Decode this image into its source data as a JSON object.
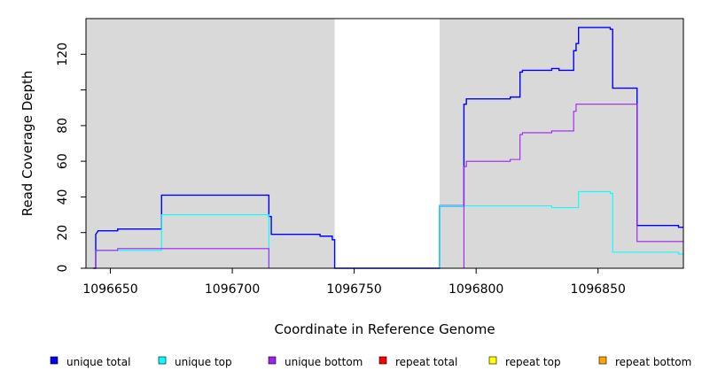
{
  "chart_data": {
    "type": "line",
    "step": true,
    "xlabel": "Coordinate in Reference Genome",
    "ylabel": "Read Coverage Depth",
    "xlim": [
      1096640,
      1096885
    ],
    "ylim": [
      0,
      140
    ],
    "xticks": [
      1096650,
      1096700,
      1096750,
      1096800,
      1096850
    ],
    "xtick_labels": [
      "1096650",
      "1096700",
      "1096750",
      "1096800",
      "1096850"
    ],
    "yticks": [
      0,
      20,
      40,
      60,
      80,
      100,
      120
    ],
    "ytick_labels": [
      "0",
      "20",
      "40",
      "60",
      "80",
      "",
      "120"
    ],
    "background_color": "#d9d9d9",
    "unshaded_region": [
      1096742,
      1096785
    ],
    "legend_position": "bottom",
    "series": [
      {
        "name": "unique total",
        "color": "#0000ff",
        "points": [
          [
            1096643,
            0
          ],
          [
            1096644,
            0
          ],
          [
            1096644,
            19
          ],
          [
            1096645,
            21
          ],
          [
            1096653,
            21
          ],
          [
            1096653,
            22
          ],
          [
            1096671,
            22
          ],
          [
            1096671,
            41
          ],
          [
            1096715,
            41
          ],
          [
            1096715,
            29
          ],
          [
            1096716,
            29
          ],
          [
            1096716,
            19
          ],
          [
            1096736,
            19
          ],
          [
            1096736,
            18
          ],
          [
            1096741,
            18
          ],
          [
            1096741,
            16
          ],
          [
            1096742,
            16
          ],
          [
            1096742,
            0
          ],
          [
            1096785,
            0
          ],
          [
            1096785,
            35
          ],
          [
            1096795,
            35
          ],
          [
            1096795,
            92
          ],
          [
            1096796,
            92
          ],
          [
            1096796,
            95
          ],
          [
            1096814,
            95
          ],
          [
            1096814,
            96
          ],
          [
            1096818,
            96
          ],
          [
            1096818,
            110
          ],
          [
            1096819,
            110
          ],
          [
            1096819,
            111
          ],
          [
            1096831,
            111
          ],
          [
            1096831,
            112
          ],
          [
            1096834,
            112
          ],
          [
            1096834,
            111
          ],
          [
            1096840,
            111
          ],
          [
            1096840,
            122
          ],
          [
            1096841,
            122
          ],
          [
            1096841,
            126
          ],
          [
            1096842,
            126
          ],
          [
            1096842,
            135
          ],
          [
            1096855,
            135
          ],
          [
            1096855,
            134
          ],
          [
            1096856,
            134
          ],
          [
            1096856,
            101
          ],
          [
            1096866,
            101
          ],
          [
            1096866,
            24
          ],
          [
            1096883,
            24
          ],
          [
            1096883,
            23
          ],
          [
            1096885,
            23
          ]
        ]
      },
      {
        "name": "unique top",
        "color": "#00ffff",
        "points": [
          [
            1096643,
            0
          ],
          [
            1096644,
            0
          ],
          [
            1096644,
            9
          ],
          [
            1096645,
            10
          ],
          [
            1096671,
            10
          ],
          [
            1096671,
            30
          ],
          [
            1096715,
            30
          ],
          [
            1096715,
            0
          ],
          [
            1096785,
            0
          ],
          [
            1096785,
            35
          ],
          [
            1096831,
            35
          ],
          [
            1096831,
            34
          ],
          [
            1096842,
            34
          ],
          [
            1096842,
            43
          ],
          [
            1096855,
            43
          ],
          [
            1096855,
            42
          ],
          [
            1096856,
            42
          ],
          [
            1096856,
            9
          ],
          [
            1096883,
            9
          ],
          [
            1096883,
            8
          ],
          [
            1096885,
            8
          ]
        ]
      },
      {
        "name": "unique bottom",
        "color": "#a020f0",
        "points": [
          [
            1096643,
            0
          ],
          [
            1096644,
            0
          ],
          [
            1096644,
            10
          ],
          [
            1096653,
            10
          ],
          [
            1096653,
            11
          ],
          [
            1096715,
            11
          ],
          [
            1096715,
            0
          ],
          [
            1096795,
            0
          ],
          [
            1096795,
            57
          ],
          [
            1096796,
            57
          ],
          [
            1096796,
            60
          ],
          [
            1096814,
            60
          ],
          [
            1096814,
            61
          ],
          [
            1096818,
            61
          ],
          [
            1096818,
            75
          ],
          [
            1096819,
            75
          ],
          [
            1096819,
            76
          ],
          [
            1096831,
            76
          ],
          [
            1096831,
            77
          ],
          [
            1096840,
            77
          ],
          [
            1096840,
            88
          ],
          [
            1096841,
            88
          ],
          [
            1096841,
            92
          ],
          [
            1096866,
            92
          ],
          [
            1096866,
            15
          ],
          [
            1096885,
            15
          ]
        ]
      },
      {
        "name": "repeat total",
        "color": "#ff0000",
        "points": [
          [
            1096643,
            0
          ],
          [
            1096885,
            0
          ]
        ]
      },
      {
        "name": "repeat top",
        "color": "#ffff00",
        "points": [
          [
            1096643,
            0
          ],
          [
            1096885,
            0
          ]
        ]
      },
      {
        "name": "repeat bottom",
        "color": "#ffa500",
        "points": [
          [
            1096643,
            0
          ],
          [
            1096885,
            0
          ]
        ]
      }
    ]
  }
}
